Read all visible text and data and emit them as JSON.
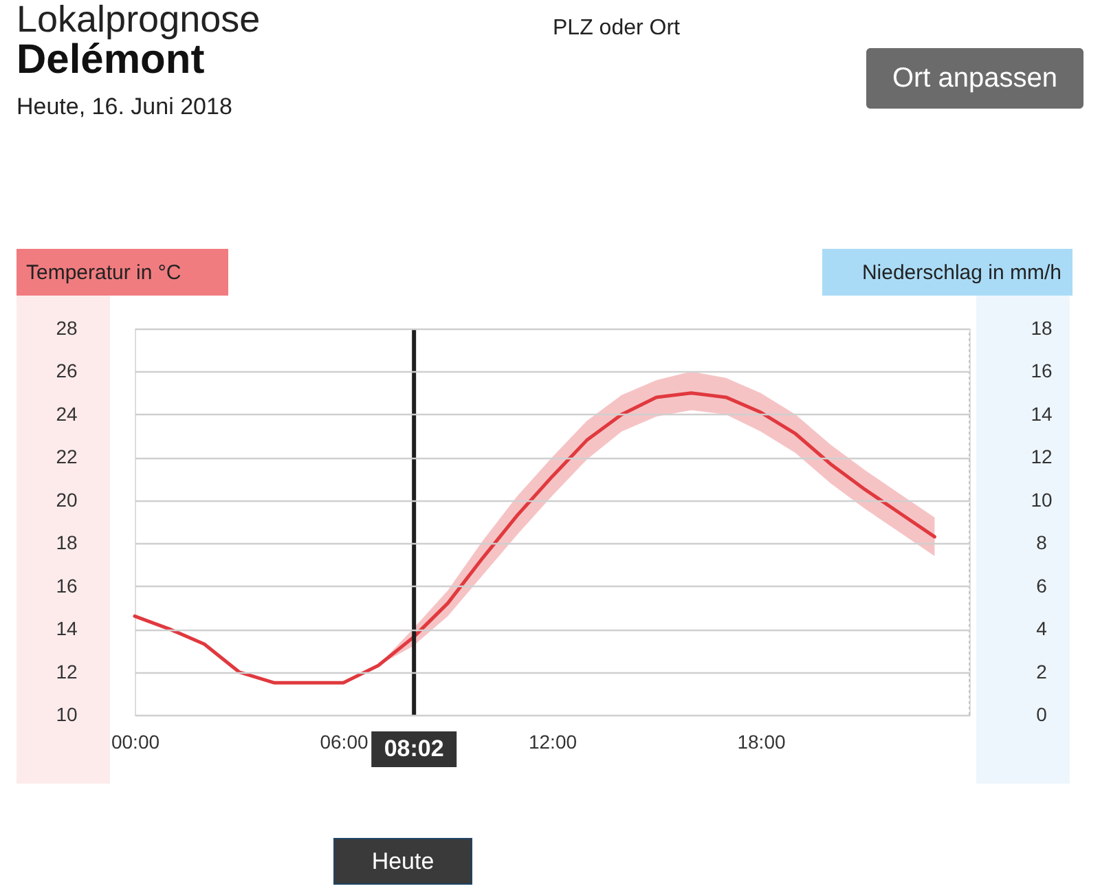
{
  "chart_data": {
    "type": "line",
    "title": "Lokalprognose",
    "subtitle": "Delémont",
    "annotations": [
      "Heute, 16. Juni 2018",
      "PLZ oder Ort",
      "Ort anpassen",
      "Heute"
    ],
    "ylabel": "Temperatur in °C",
    "y2label": "Niederschlag in mm/h",
    "x": [
      0,
      1,
      2,
      3,
      4,
      5,
      6,
      7,
      8,
      9,
      10,
      11,
      12,
      13,
      14,
      15,
      16,
      17,
      18,
      19,
      20,
      21,
      22,
      23
    ],
    "series": [
      {
        "color": "#e0393e",
        "values": [
          14.6,
          14.0,
          13.3,
          12.0,
          11.5,
          11.5,
          11.5,
          12.3,
          13.6,
          15.2,
          17.3,
          19.3,
          21.1,
          22.8,
          24.0,
          24.8,
          25.0,
          24.8,
          24.1,
          23.1,
          21.7,
          20.5,
          19.4,
          18.3
        ],
        "lower": [
          null,
          null,
          null,
          null,
          null,
          null,
          null,
          12.3,
          13.2,
          14.6,
          16.5,
          18.4,
          20.2,
          21.9,
          23.2,
          23.9,
          24.2,
          24.0,
          23.2,
          22.2,
          20.8,
          19.6,
          18.5,
          17.4
        ],
        "upper": [
          null,
          null,
          null,
          null,
          null,
          null,
          null,
          12.3,
          14.0,
          15.8,
          18.1,
          20.2,
          22.0,
          23.7,
          24.9,
          25.6,
          26.0,
          25.7,
          25.0,
          24.0,
          22.6,
          21.4,
          20.3,
          19.2
        ]
      }
    ],
    "xlim": [
      0,
      24
    ],
    "xticks": [
      {
        "value": 0,
        "label": "00:00"
      },
      {
        "value": 6,
        "label": "06:00"
      },
      {
        "value": 12,
        "label": "12:00"
      },
      {
        "value": 18,
        "label": "18:00"
      }
    ],
    "ylim": [
      10,
      28
    ],
    "yticks": [
      10,
      12,
      14,
      16,
      18,
      20,
      22,
      24,
      26,
      28
    ],
    "y2lim": [
      0,
      18
    ],
    "y2ticks": [
      0,
      2,
      4,
      6,
      8,
      10,
      12,
      14,
      16,
      18
    ],
    "ref_lines": [
      {
        "axis": "x",
        "value": 8.03,
        "label": "08:02",
        "color": "#1e1e1e"
      }
    ],
    "grid": "y"
  }
}
